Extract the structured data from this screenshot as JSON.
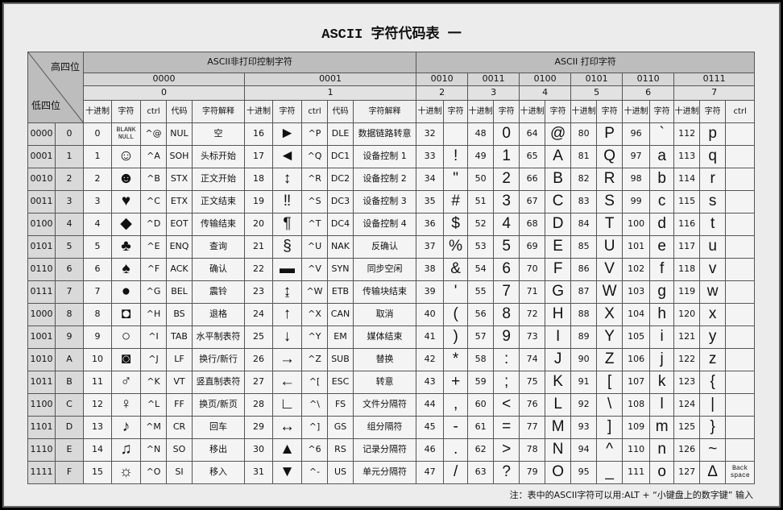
{
  "title": "ASCII 字符代码表 一",
  "note": "注：表中的ASCII字符可以用:ALT + “小键盘上的数字键” 输入",
  "header": {
    "corner_top": "高四位",
    "corner_bottom": "低四位",
    "groups": [
      "ASCII非打印控制字符",
      "ASCII 打印字符"
    ],
    "bits": [
      "0000",
      "0001",
      "0010",
      "0011",
      "0100",
      "0101",
      "0110",
      "0111"
    ],
    "hex": [
      "0",
      "1",
      "2",
      "3",
      "4",
      "5",
      "6",
      "7"
    ],
    "subheaders": [
      "十进制",
      "字符",
      "ctrl",
      "代码",
      "字符解释",
      "十进制",
      "字符",
      "ctrl",
      "代码",
      "字符解释",
      "十进制",
      "字符",
      "十进制",
      "字符",
      "十进制",
      "字符",
      "十进制",
      "字符",
      "十进制",
      "字符",
      "十进制",
      "字符",
      "ctrl"
    ]
  },
  "table": {
    "rows": [
      [
        "0000",
        "0",
        0,
        "BLANK NULL",
        "^@",
        "NUL",
        "空",
        16,
        "►",
        "^P",
        "DLE",
        "数据链路转意",
        32,
        null,
        48,
        "0",
        64,
        "@",
        80,
        "P",
        96,
        "`",
        112,
        "p",
        null
      ],
      [
        "0001",
        "1",
        1,
        "☺",
        "^A",
        "SOH",
        "头标开始",
        17,
        "◄",
        "^Q",
        "DC1",
        "设备控制 1",
        33,
        "!",
        49,
        "1",
        65,
        "A",
        81,
        "Q",
        97,
        "a",
        113,
        "q",
        null
      ],
      [
        "0010",
        "2",
        2,
        "☻",
        "^B",
        "STX",
        "正文开始",
        18,
        "↕",
        "^R",
        "DC2",
        "设备控制 2",
        34,
        "\"",
        50,
        "2",
        66,
        "B",
        82,
        "R",
        98,
        "b",
        114,
        "r",
        null
      ],
      [
        "0011",
        "3",
        3,
        "♥",
        "^C",
        "ETX",
        "正文结束",
        19,
        "‼",
        "^S",
        "DC3",
        "设备控制 3",
        35,
        "#",
        51,
        "3",
        67,
        "C",
        83,
        "S",
        99,
        "c",
        115,
        "s",
        null
      ],
      [
        "0100",
        "4",
        4,
        "◆",
        "^D",
        "EOT",
        "传输结束",
        20,
        "¶",
        "^T",
        "DC4",
        "设备控制 4",
        36,
        "$",
        52,
        "4",
        68,
        "D",
        84,
        "T",
        100,
        "d",
        116,
        "t",
        null
      ],
      [
        "0101",
        "5",
        5,
        "♣",
        "^E",
        "ENQ",
        "查询",
        21,
        "§",
        "^U",
        "NAK",
        "反确认",
        37,
        "%",
        53,
        "5",
        69,
        "E",
        85,
        "U",
        101,
        "e",
        117,
        "u",
        null
      ],
      [
        "0110",
        "6",
        6,
        "♠",
        "^F",
        "ACK",
        "确认",
        22,
        "▬",
        "^V",
        "SYN",
        "同步空闲",
        38,
        "&",
        54,
        "6",
        70,
        "F",
        86,
        "V",
        102,
        "f",
        118,
        "v",
        null
      ],
      [
        "0111",
        "7",
        7,
        "●",
        "^G",
        "BEL",
        "震铃",
        23,
        "↨",
        "^W",
        "ETB",
        "传输块结束",
        39,
        "'",
        55,
        "7",
        71,
        "G",
        87,
        "W",
        103,
        "g",
        119,
        "w",
        null
      ],
      [
        "1000",
        "8",
        8,
        "◘",
        "^H",
        "BS",
        "退格",
        24,
        "↑",
        "^X",
        "CAN",
        "取消",
        40,
        "(",
        56,
        "8",
        72,
        "H",
        88,
        "X",
        104,
        "h",
        120,
        "x",
        null
      ],
      [
        "1001",
        "9",
        9,
        "○",
        "^I",
        "TAB",
        "水平制表符",
        25,
        "↓",
        "^Y",
        "EM",
        "媒体结束",
        41,
        ")",
        57,
        "9",
        73,
        "I",
        89,
        "Y",
        105,
        "i",
        121,
        "y",
        null
      ],
      [
        "1010",
        "A",
        10,
        "◙",
        "^J",
        "LF",
        "换行/新行",
        26,
        "→",
        "^Z",
        "SUB",
        "替换",
        42,
        "*",
        58,
        ":",
        74,
        "J",
        90,
        "Z",
        106,
        "j",
        122,
        "z",
        null
      ],
      [
        "1011",
        "B",
        11,
        "♂",
        "^K",
        "VT",
        "竖直制表符",
        27,
        "←",
        "^[",
        "ESC",
        "转意",
        43,
        "+",
        59,
        ";",
        75,
        "K",
        91,
        "[",
        107,
        "k",
        123,
        "{",
        null
      ],
      [
        "1100",
        "C",
        12,
        "♀",
        "^L",
        "FF",
        "换页/新页",
        28,
        "∟",
        "^\\",
        "FS",
        "文件分隔符",
        44,
        ",",
        60,
        "<",
        76,
        "L",
        92,
        "\\",
        108,
        "l",
        124,
        "|",
        null
      ],
      [
        "1101",
        "D",
        13,
        "♪",
        "^M",
        "CR",
        "回车",
        29,
        "↔",
        "^]",
        "GS",
        "组分隔符",
        45,
        "-",
        61,
        "=",
        77,
        "M",
        93,
        "]",
        109,
        "m",
        125,
        "}",
        null
      ],
      [
        "1110",
        "E",
        14,
        "♫",
        "^N",
        "SO",
        "移出",
        30,
        "▲",
        "^6",
        "RS",
        "记录分隔符",
        46,
        ".",
        62,
        ">",
        78,
        "N",
        94,
        "^",
        110,
        "n",
        126,
        "~",
        null
      ],
      [
        "1111",
        "F",
        15,
        "☼",
        "^O",
        "SI",
        "移入",
        31,
        "▼",
        "^-",
        "US",
        "单元分隔符",
        47,
        "/",
        63,
        "?",
        79,
        "O",
        95,
        "_",
        111,
        "o",
        127,
        "Δ",
        "Back space"
      ]
    ]
  }
}
